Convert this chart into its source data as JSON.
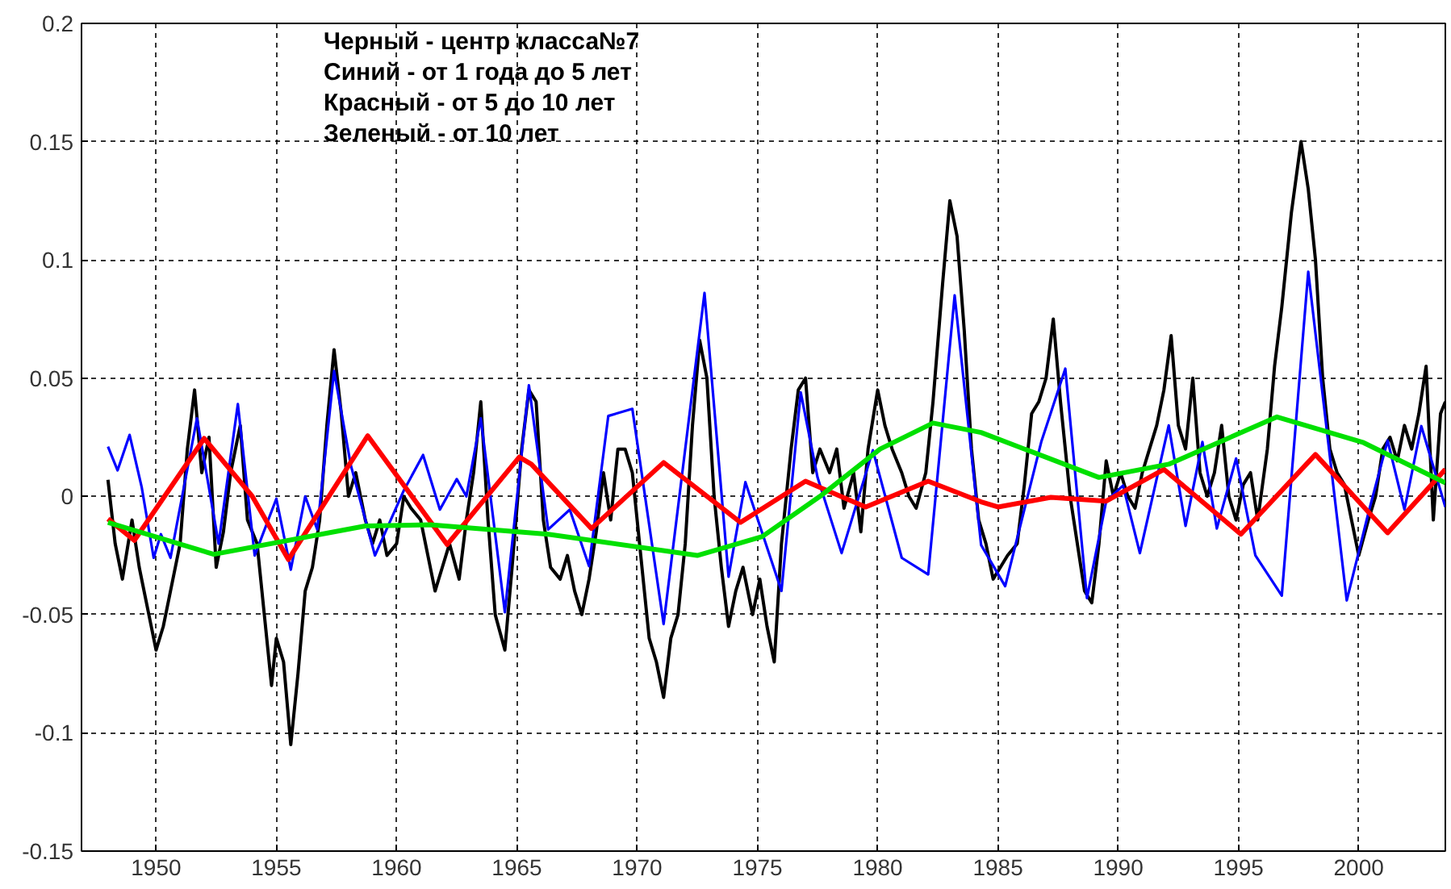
{
  "chart_data": {
    "type": "line",
    "xlim": [
      1946.9,
      2003.6
    ],
    "ylim": [
      -0.15,
      0.2
    ],
    "xticks": [
      1950,
      1955,
      1960,
      1965,
      1970,
      1975,
      1980,
      1985,
      1990,
      1995,
      2000
    ],
    "yticks": [
      -0.15,
      -0.1,
      -0.05,
      0,
      0.05,
      0.1,
      0.15,
      0.2
    ],
    "grid": true,
    "line_style": "solid",
    "annotations": [
      "Черный  - центр класса№7",
      "Синий - от 1 года до 5 лет",
      "Красный - от 5 до 10 лет",
      "Зеленый - от 10 лет"
    ],
    "series": [
      {
        "color": "#000000",
        "x": [
          1948.0,
          1948.3,
          1948.6,
          1949.0,
          1949.3,
          1949.7,
          1950.0,
          1950.3,
          1950.6,
          1951.0,
          1951.3,
          1951.6,
          1951.9,
          1952.2,
          1952.5,
          1952.8,
          1953.1,
          1953.5,
          1953.8,
          1954.2,
          1954.5,
          1954.8,
          1955.0,
          1955.3,
          1955.6,
          1955.9,
          1956.2,
          1956.5,
          1956.8,
          1957.1,
          1957.4,
          1957.7,
          1958.0,
          1958.3,
          1958.7,
          1959.0,
          1959.3,
          1959.6,
          1960.0,
          1960.3,
          1960.6,
          1961.0,
          1961.3,
          1961.6,
          1961.9,
          1962.2,
          1962.6,
          1962.9,
          1963.2,
          1963.5,
          1963.8,
          1964.1,
          1964.5,
          1964.8,
          1965.2,
          1965.5,
          1965.8,
          1966.1,
          1966.4,
          1966.8,
          1967.1,
          1967.4,
          1967.7,
          1968.0,
          1968.3,
          1968.6,
          1968.9,
          1969.2,
          1969.5,
          1969.8,
          1970.1,
          1970.5,
          1970.8,
          1971.1,
          1971.4,
          1971.7,
          1972.0,
          1972.3,
          1972.6,
          1972.9,
          1973.2,
          1973.5,
          1973.8,
          1974.1,
          1974.4,
          1974.8,
          1975.1,
          1975.4,
          1975.7,
          1976.0,
          1976.4,
          1976.7,
          1977.0,
          1977.3,
          1977.6,
          1978.0,
          1978.3,
          1978.6,
          1979.0,
          1979.3,
          1979.6,
          1980.0,
          1980.3,
          1980.6,
          1981.0,
          1981.3,
          1981.6,
          1982.0,
          1982.3,
          1982.7,
          1983.0,
          1983.3,
          1983.6,
          1983.9,
          1984.2,
          1984.5,
          1984.8,
          1985.1,
          1985.4,
          1985.8,
          1986.1,
          1986.4,
          1986.7,
          1987.0,
          1987.3,
          1987.6,
          1988.0,
          1988.3,
          1988.6,
          1988.9,
          1989.2,
          1989.5,
          1989.8,
          1990.1,
          1990.4,
          1990.7,
          1991.0,
          1991.3,
          1991.6,
          1991.9,
          1992.2,
          1992.5,
          1992.8,
          1993.1,
          1993.4,
          1993.7,
          1994.0,
          1994.3,
          1994.6,
          1994.9,
          1995.2,
          1995.5,
          1995.8,
          1996.2,
          1996.5,
          1996.8,
          1997.2,
          1997.6,
          1997.9,
          1998.2,
          1998.5,
          1998.8,
          1999.1,
          1999.4,
          1999.7,
          2000.0,
          2000.4,
          2000.7,
          2001.0,
          2001.3,
          2001.6,
          2001.9,
          2002.2,
          2002.5,
          2002.8,
          2003.1,
          2003.4,
          2003.6
        ],
        "values": [
          0.007,
          -0.02,
          -0.035,
          -0.01,
          -0.03,
          -0.05,
          -0.065,
          -0.055,
          -0.04,
          -0.02,
          0.02,
          0.045,
          0.01,
          0.025,
          -0.03,
          -0.015,
          0.01,
          0.03,
          -0.01,
          -0.02,
          -0.05,
          -0.08,
          -0.06,
          -0.07,
          -0.105,
          -0.075,
          -0.04,
          -0.03,
          -0.01,
          0.03,
          0.062,
          0.035,
          0.0,
          0.01,
          -0.01,
          -0.02,
          -0.01,
          -0.025,
          -0.02,
          0.0,
          -0.005,
          -0.01,
          -0.025,
          -0.04,
          -0.03,
          -0.02,
          -0.035,
          -0.01,
          0.01,
          0.04,
          -0.01,
          -0.05,
          -0.065,
          -0.03,
          0.02,
          0.045,
          0.04,
          -0.01,
          -0.03,
          -0.035,
          -0.025,
          -0.04,
          -0.05,
          -0.035,
          -0.015,
          0.01,
          -0.01,
          0.02,
          0.02,
          0.01,
          -0.02,
          -0.06,
          -0.07,
          -0.085,
          -0.06,
          -0.05,
          -0.02,
          0.03,
          0.066,
          0.05,
          0.0,
          -0.03,
          -0.055,
          -0.04,
          -0.03,
          -0.05,
          -0.035,
          -0.055,
          -0.07,
          -0.02,
          0.02,
          0.045,
          0.05,
          0.01,
          0.02,
          0.01,
          0.02,
          -0.005,
          0.01,
          -0.015,
          0.02,
          0.045,
          0.03,
          0.02,
          0.01,
          0.0,
          -0.005,
          0.01,
          0.04,
          0.09,
          0.125,
          0.11,
          0.07,
          0.02,
          -0.01,
          -0.02,
          -0.035,
          -0.03,
          -0.025,
          -0.02,
          0.005,
          0.035,
          0.04,
          0.05,
          0.075,
          0.04,
          0.0,
          -0.02,
          -0.04,
          -0.045,
          -0.02,
          0.015,
          0.0,
          0.01,
          0.0,
          -0.005,
          0.01,
          0.02,
          0.03,
          0.045,
          0.068,
          0.03,
          0.02,
          0.05,
          0.01,
          0.0,
          0.01,
          0.03,
          0.0,
          -0.01,
          0.005,
          0.01,
          -0.01,
          0.02,
          0.055,
          0.08,
          0.12,
          0.15,
          0.13,
          0.1,
          0.05,
          0.02,
          0.01,
          0.005,
          -0.01,
          -0.025,
          -0.01,
          0.0,
          0.02,
          0.025,
          0.015,
          0.03,
          0.02,
          0.035,
          0.055,
          -0.01,
          0.035,
          0.04
        ]
      },
      {
        "color": "#0000ff",
        "x": [
          1948.0,
          1948.4,
          1948.9,
          1949.4,
          1949.9,
          1950.2,
          1950.6,
          1951.7,
          1952.6,
          1953.4,
          1954.1,
          1955.0,
          1955.6,
          1956.2,
          1956.7,
          1957.4,
          1958.1,
          1959.1,
          1960.3,
          1961.1,
          1961.8,
          1962.5,
          1962.9,
          1963.5,
          1964.5,
          1965.5,
          1966.3,
          1967.2,
          1968.0,
          1968.8,
          1969.8,
          1971.1,
          1972.8,
          1973.8,
          1974.5,
          1976.0,
          1976.8,
          1977.5,
          1978.5,
          1979.8,
          1981.0,
          1982.1,
          1983.2,
          1984.3,
          1985.3,
          1986.8,
          1987.8,
          1988.7,
          1989.5,
          1990.2,
          1990.9,
          1992.1,
          1992.8,
          1993.5,
          1994.1,
          1994.9,
          1995.7,
          1996.8,
          1997.9,
          1999.5,
          2000.4,
          2001.2,
          2001.9,
          2002.6,
          2003.6
        ],
        "values": [
          0.021,
          0.011,
          0.026,
          0.004,
          -0.026,
          -0.016,
          -0.026,
          0.033,
          -0.02,
          0.039,
          -0.025,
          -0.001,
          -0.031,
          0.0,
          -0.014,
          0.053,
          0.013,
          -0.025,
          0.0025,
          0.0175,
          -0.0056,
          0.0073,
          0.0,
          0.033,
          -0.049,
          0.047,
          -0.014,
          -0.0056,
          -0.0295,
          0.034,
          0.037,
          -0.054,
          0.086,
          -0.034,
          0.006,
          -0.04,
          0.044,
          0.008,
          -0.024,
          0.0195,
          -0.026,
          -0.033,
          0.085,
          -0.0206,
          -0.038,
          0.023,
          0.054,
          -0.043,
          -0.002,
          0.0046,
          -0.024,
          0.03,
          -0.0125,
          0.023,
          -0.0136,
          0.016,
          -0.0249,
          -0.042,
          0.095,
          -0.044,
          -0.007,
          0.0236,
          -0.0056,
          0.0297,
          -0.0045
        ]
      },
      {
        "color": "#ff0000",
        "x": [
          1948.0,
          1949.1,
          1952.0,
          1954.0,
          1955.5,
          1958.8,
          1962.1,
          1965.1,
          1965.6,
          1968.1,
          1971.1,
          1974.3,
          1977.0,
          1979.5,
          1982.1,
          1984.3,
          1985.0,
          1987.2,
          1989.5,
          1991.9,
          1995.1,
          1998.2,
          2001.2,
          2003.6
        ],
        "values": [
          -0.0095,
          -0.0186,
          0.0245,
          0.0,
          -0.0267,
          0.0256,
          -0.0204,
          0.0166,
          0.0136,
          -0.0136,
          0.0143,
          -0.011,
          0.0064,
          -0.0045,
          0.0064,
          -0.0023,
          -0.0045,
          -0.0004,
          -0.002,
          0.0114,
          -0.016,
          0.0177,
          -0.0154,
          0.0114
        ]
      },
      {
        "color": "#00e000",
        "x": [
          1948.0,
          1952.4,
          1958.7,
          1961.4,
          1966.3,
          1972.5,
          1975.2,
          1977.6,
          1980.1,
          1982.3,
          1984.3,
          1989.2,
          1992.1,
          1996.6,
          2000.2,
          2003.6
        ],
        "values": [
          -0.011,
          -0.0245,
          -0.0125,
          -0.012,
          -0.016,
          -0.025,
          -0.017,
          0.0,
          0.02,
          0.031,
          0.027,
          0.008,
          0.0136,
          0.0336,
          0.0227,
          0.0057
        ]
      }
    ]
  }
}
